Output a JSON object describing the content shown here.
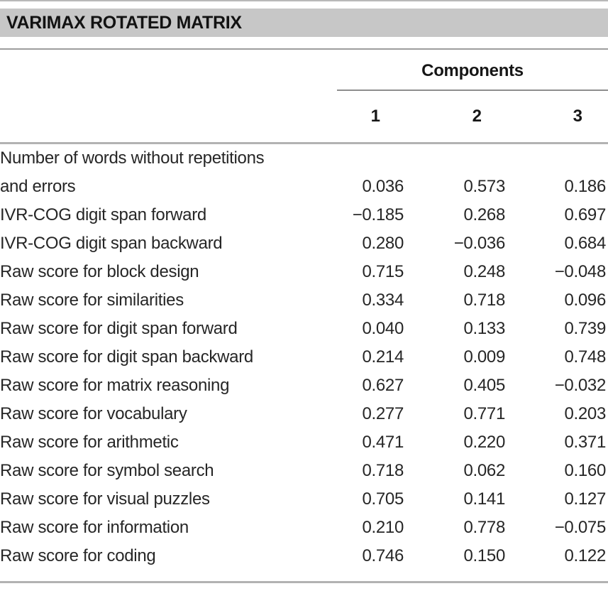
{
  "title_bar": {
    "title": "VARIMAX ROTATED MATRIX"
  },
  "table": {
    "group_header": "Components",
    "column_headers": [
      "1",
      "2",
      "3"
    ],
    "rows": [
      {
        "label_line1": "Number of words without repetitions",
        "label_line2": "and errors",
        "c1": "0.036",
        "c2": "0.573",
        "c3": "0.186"
      },
      {
        "label": "IVR-COG digit span forward",
        "c1": "−0.185",
        "c2": "0.268",
        "c3": "0.697"
      },
      {
        "label": "IVR-COG digit span backward",
        "c1": "0.280",
        "c2": "−0.036",
        "c3": "0.684"
      },
      {
        "label": "Raw score for block design",
        "c1": "0.715",
        "c2": "0.248",
        "c3": "−0.048"
      },
      {
        "label": "Raw score for similarities",
        "c1": "0.334",
        "c2": "0.718",
        "c3": "0.096"
      },
      {
        "label": "Raw score for digit span forward",
        "c1": "0.040",
        "c2": "0.133",
        "c3": "0.739"
      },
      {
        "label": "Raw score for digit span backward",
        "c1": "0.214",
        "c2": "0.009",
        "c3": "0.748"
      },
      {
        "label": "Raw score for matrix reasoning",
        "c1": "0.627",
        "c2": "0.405",
        "c3": "−0.032"
      },
      {
        "label": "Raw score for vocabulary",
        "c1": "0.277",
        "c2": "0.771",
        "c3": "0.203"
      },
      {
        "label": "Raw score for arithmetic",
        "c1": "0.471",
        "c2": "0.220",
        "c3": "0.371"
      },
      {
        "label": "Raw score for symbol search",
        "c1": "0.718",
        "c2": "0.062",
        "c3": "0.160"
      },
      {
        "label": "Raw score for visual puzzles",
        "c1": "0.705",
        "c2": "0.141",
        "c3": "0.127"
      },
      {
        "label": "Raw score for information",
        "c1": "0.210",
        "c2": "0.778",
        "c3": "−0.075"
      },
      {
        "label": "Raw score for coding",
        "c1": "0.746",
        "c2": "0.150",
        "c3": "0.122"
      }
    ]
  },
  "colors": {
    "banner_bg": "#c7c7c7",
    "text": "#262626",
    "rule_light": "#b2b2b2",
    "rule_dark": "#8e8e8e"
  }
}
